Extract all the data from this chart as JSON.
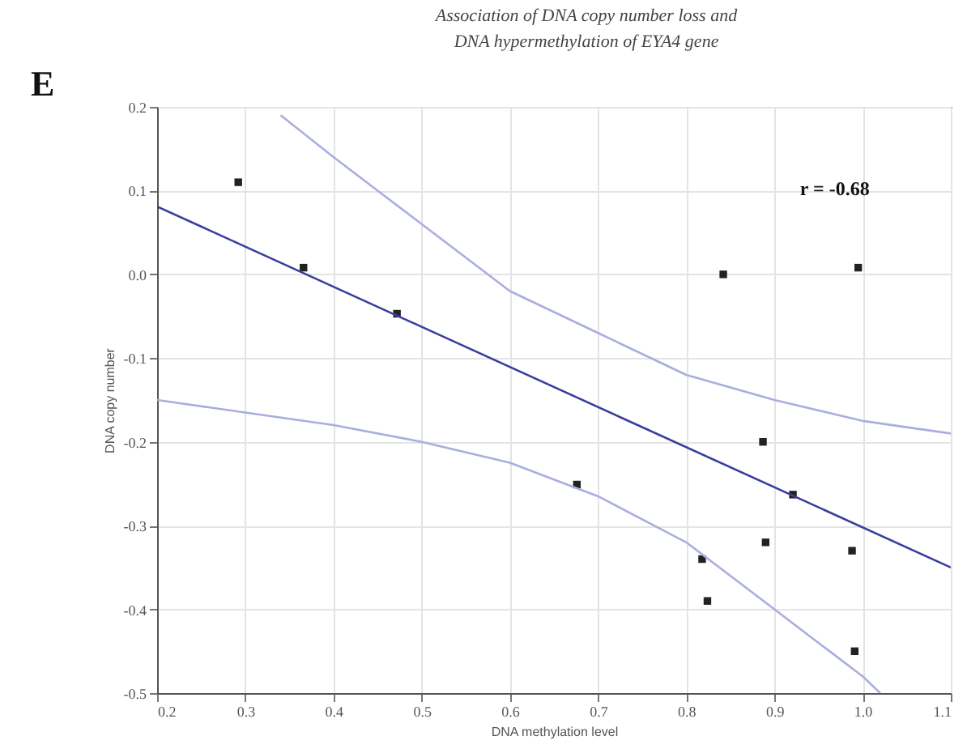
{
  "chart_data": {
    "type": "scatter",
    "title": "Association of DNA copy number loss and\nDNA hypermethylation of EYA4 gene",
    "xlabel": "DNA methylation level",
    "ylabel": "DNA copy number",
    "annotations": [
      "E",
      "r = -0.68"
    ],
    "series": [
      {
        "color": "#222222",
        "marker": "square",
        "x": [
          0.292,
          0.366,
          0.472,
          0.676,
          0.818,
          0.824,
          0.842,
          0.887,
          0.89,
          0.921,
          0.988,
          0.991,
          0.995
        ],
        "values": [
          0.11,
          0.008,
          -0.047,
          -0.251,
          -0.34,
          -0.39,
          0.0,
          -0.2,
          -0.32,
          -0.263,
          -0.33,
          -0.45,
          0.008
        ]
      },
      {
        "type": "line",
        "color": "#3a3f9e",
        "x": [
          0.2,
          1.1
        ],
        "values": [
          0.081,
          -0.35
        ]
      },
      {
        "type": "line",
        "color": "#a9aee0",
        "x": [
          0.34,
          0.4,
          0.5,
          0.6,
          0.7,
          0.8,
          0.9,
          1.0,
          1.1
        ],
        "values": [
          0.19,
          0.14,
          0.06,
          -0.02,
          -0.07,
          -0.12,
          -0.15,
          -0.175,
          -0.19
        ]
      },
      {
        "type": "line",
        "color": "#a9aee0",
        "x": [
          0.2,
          0.3,
          0.4,
          0.5,
          0.6,
          0.7,
          0.8,
          0.9,
          1.0,
          1.02
        ],
        "values": [
          -0.15,
          -0.165,
          -0.18,
          -0.2,
          -0.225,
          -0.265,
          -0.32,
          -0.4,
          -0.48,
          -0.5
        ]
      }
    ],
    "xlim": [
      0.2,
      1.1
    ],
    "ylim": [
      -0.5,
      0.2
    ],
    "xticks": [
      0.2,
      0.3,
      0.4,
      0.5,
      0.6,
      0.7,
      0.8,
      0.9,
      {
        "value": 1,
        "label": "1.0"
      },
      1.1
    ],
    "yticks": [
      -0.5,
      -0.4,
      -0.3,
      -0.2,
      -0.1,
      {
        "value": 0,
        "label": "0.0"
      },
      0.1,
      0.2
    ],
    "grid": true,
    "line_style": "solid"
  }
}
